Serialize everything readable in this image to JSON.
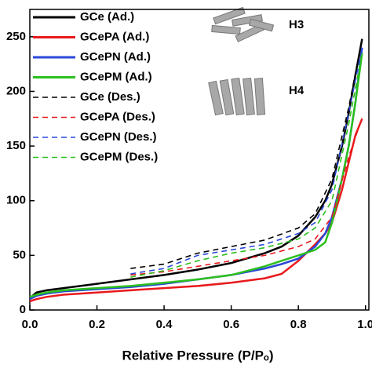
{
  "chart_data": {
    "type": "line",
    "xlabel": "Relative Pressure (P/Pₒ)",
    "xlim": [
      0,
      1.01
    ],
    "ylim": [
      0,
      275
    ],
    "xticks": [
      {
        "value": 0,
        "label": "0.0"
      },
      {
        "value": 0.2,
        "label": "0.2"
      },
      {
        "value": 0.4,
        "label": "0.4"
      },
      {
        "value": 0.6,
        "label": "0.6"
      },
      {
        "value": 0.8,
        "label": "0.8"
      },
      {
        "value": 1,
        "label": "1.0"
      }
    ],
    "yticks": [
      0,
      50,
      100,
      150,
      200,
      250
    ],
    "annotations": [
      "H3",
      "H4"
    ],
    "series": [
      {
        "name": "GCe (Ad.)",
        "color": "#000000",
        "linestyle": "solid",
        "x": [
          0,
          0.02,
          0.05,
          0.1,
          0.2,
          0.3,
          0.4,
          0.5,
          0.6,
          0.7,
          0.75,
          0.8,
          0.85,
          0.88,
          0.9,
          0.93,
          0.95,
          0.97,
          0.99
        ],
        "values": [
          11,
          16,
          18,
          20,
          24,
          28,
          32,
          37,
          43,
          52,
          58,
          68,
          85,
          100,
          115,
          150,
          180,
          215,
          248
        ]
      },
      {
        "name": "GCePA (Ad.)",
        "color": "#e8191c",
        "linestyle": "solid",
        "x": [
          0,
          0.02,
          0.05,
          0.1,
          0.2,
          0.3,
          0.4,
          0.5,
          0.6,
          0.7,
          0.75,
          0.8,
          0.85,
          0.88,
          0.9,
          0.93,
          0.95,
          0.97,
          0.99
        ],
        "values": [
          8,
          10,
          12,
          14,
          16,
          18,
          20,
          22,
          25,
          29,
          33,
          45,
          60,
          70,
          80,
          110,
          135,
          160,
          175
        ]
      },
      {
        "name": "GCePN (Ad.)",
        "color": "#2a48d8",
        "linestyle": "solid",
        "x": [
          0,
          0.02,
          0.05,
          0.1,
          0.2,
          0.3,
          0.4,
          0.5,
          0.6,
          0.7,
          0.75,
          0.8,
          0.85,
          0.88,
          0.9,
          0.93,
          0.95,
          0.97,
          0.99
        ],
        "values": [
          10,
          13,
          15,
          17,
          19,
          21,
          24,
          28,
          32,
          38,
          42,
          47,
          58,
          70,
          85,
          120,
          150,
          190,
          240
        ]
      },
      {
        "name": "GCePM (Ad.)",
        "color": "#2bbf1e",
        "linestyle": "solid",
        "x": [
          0,
          0.02,
          0.05,
          0.1,
          0.2,
          0.3,
          0.4,
          0.5,
          0.6,
          0.7,
          0.75,
          0.8,
          0.85,
          0.88,
          0.9,
          0.93,
          0.95,
          0.97,
          0.99
        ],
        "values": [
          12,
          14,
          16,
          18,
          20,
          22,
          25,
          28,
          32,
          40,
          45,
          50,
          55,
          62,
          80,
          120,
          150,
          190,
          235
        ]
      },
      {
        "name": "GCe (Des.)",
        "color": "#000000",
        "linestyle": "dashed",
        "x": [
          0.3,
          0.4,
          0.5,
          0.6,
          0.7,
          0.8,
          0.85,
          0.9,
          0.95,
          0.99
        ],
        "values": [
          38,
          42,
          52,
          58,
          64,
          75,
          88,
          120,
          185,
          248
        ]
      },
      {
        "name": "GCePA (Des.)",
        "color": "#e8191c",
        "linestyle": "dashed",
        "x": [
          0.3,
          0.4,
          0.5,
          0.6,
          0.7,
          0.8,
          0.85,
          0.9,
          0.95,
          0.99
        ],
        "values": [
          32,
          35,
          40,
          45,
          50,
          58,
          65,
          85,
          140,
          176
        ]
      },
      {
        "name": "GCePN (Des.)",
        "color": "#2a48d8",
        "linestyle": "dashed",
        "x": [
          0.3,
          0.4,
          0.5,
          0.6,
          0.7,
          0.8,
          0.85,
          0.9,
          0.95,
          0.99
        ],
        "values": [
          33,
          38,
          50,
          55,
          60,
          70,
          80,
          110,
          180,
          240
        ]
      },
      {
        "name": "GCePM (Des.)",
        "color": "#2bbf1e",
        "linestyle": "dashed",
        "x": [
          0.3,
          0.4,
          0.5,
          0.6,
          0.7,
          0.8,
          0.85,
          0.9,
          0.95,
          0.99
        ],
        "values": [
          30,
          36,
          45,
          52,
          57,
          65,
          75,
          100,
          170,
          235
        ]
      }
    ]
  }
}
